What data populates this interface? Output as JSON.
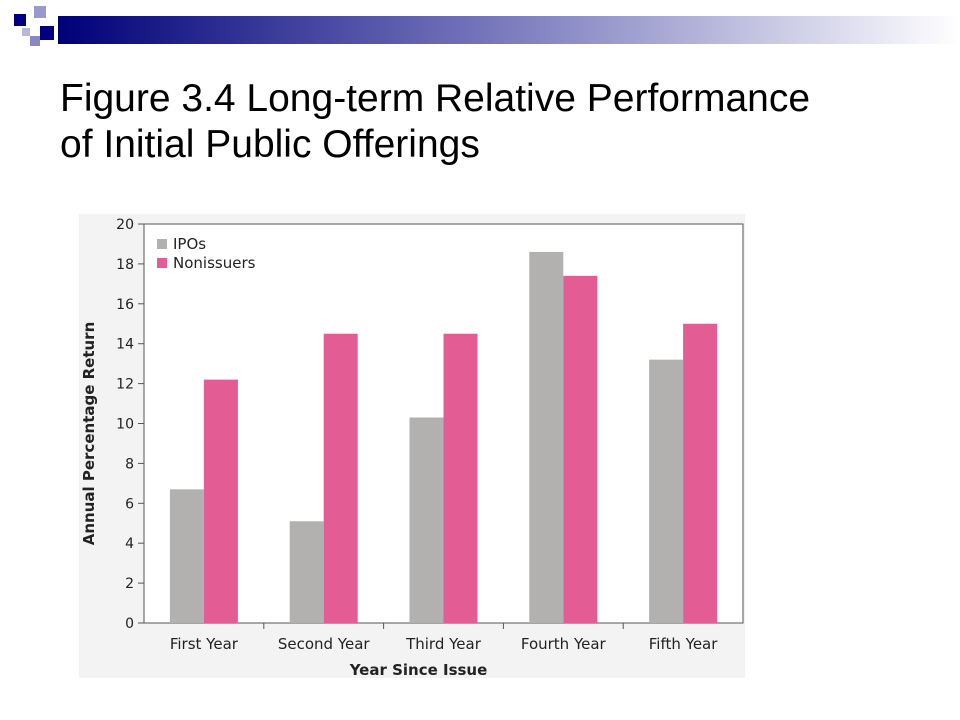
{
  "slide": {
    "title_line1": "Figure 3.4 Long-term Relative Performance",
    "title_line2": "of Initial Public Offerings"
  },
  "colors": {
    "banner_dark": "#0a0a80",
    "banner_mid": "#8a8ac8",
    "ipos": "#b3b1b0",
    "nonissuers": "#e35d94",
    "chart_background": "#f3f3f3",
    "plot_background": "#ffffff"
  },
  "chart_data": {
    "type": "bar",
    "categories": [
      "First Year",
      "Second Year",
      "Third Year",
      "Fourth Year",
      "Fifth Year"
    ],
    "series": [
      {
        "name": "IPOs",
        "values": [
          6.7,
          5.1,
          10.3,
          18.6,
          13.2
        ]
      },
      {
        "name": "Nonissuers",
        "values": [
          12.2,
          14.5,
          14.5,
          17.4,
          15.0
        ]
      }
    ],
    "xlabel": "Year Since Issue",
    "ylabel": "Annual Percentage Return",
    "ylim": [
      0,
      20
    ],
    "yticks": [
      0,
      2,
      4,
      6,
      8,
      10,
      12,
      14,
      16,
      18,
      20
    ],
    "legend_position": "top-left",
    "grid": false
  }
}
